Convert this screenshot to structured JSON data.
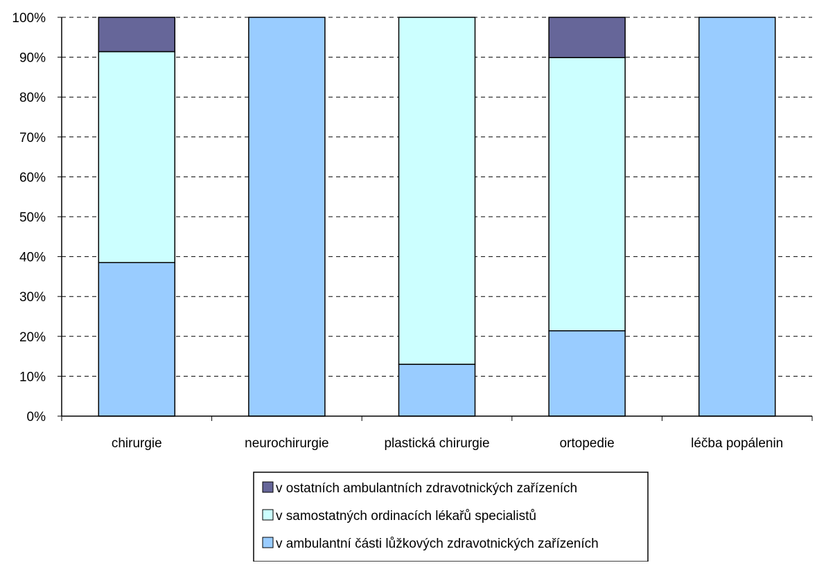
{
  "chart_data": {
    "type": "bar",
    "stacked": true,
    "percent": true,
    "categories": [
      "chirurgie",
      "neurochirurgie",
      "plastická chirurgie",
      "ortopedie",
      "léčba popálenin"
    ],
    "series": [
      {
        "name": "v ambulantní části lůžkových zdravotnických zařízeních",
        "color": "#99ccff",
        "values": [
          38.5,
          100,
          13,
          21.4,
          100
        ]
      },
      {
        "name": "v samostatných ordinacích lékařů specialistů",
        "color": "#ccffff",
        "values": [
          52.9,
          0,
          87,
          68.5,
          0
        ]
      },
      {
        "name": "v ostatních ambulantních zdravotnických zařízeních",
        "color": "#666699",
        "values": [
          8.6,
          0,
          0,
          10.1,
          0
        ]
      }
    ],
    "legend_order": [
      2,
      1,
      0
    ],
    "yticks": [
      "0%",
      "10%",
      "20%",
      "30%",
      "40%",
      "50%",
      "60%",
      "70%",
      "80%",
      "90%",
      "100%"
    ],
    "ylim": [
      0,
      100
    ],
    "grid": "horizontal-dashed",
    "legend_position": "bottom",
    "title": "",
    "xlabel": "",
    "ylabel": ""
  }
}
